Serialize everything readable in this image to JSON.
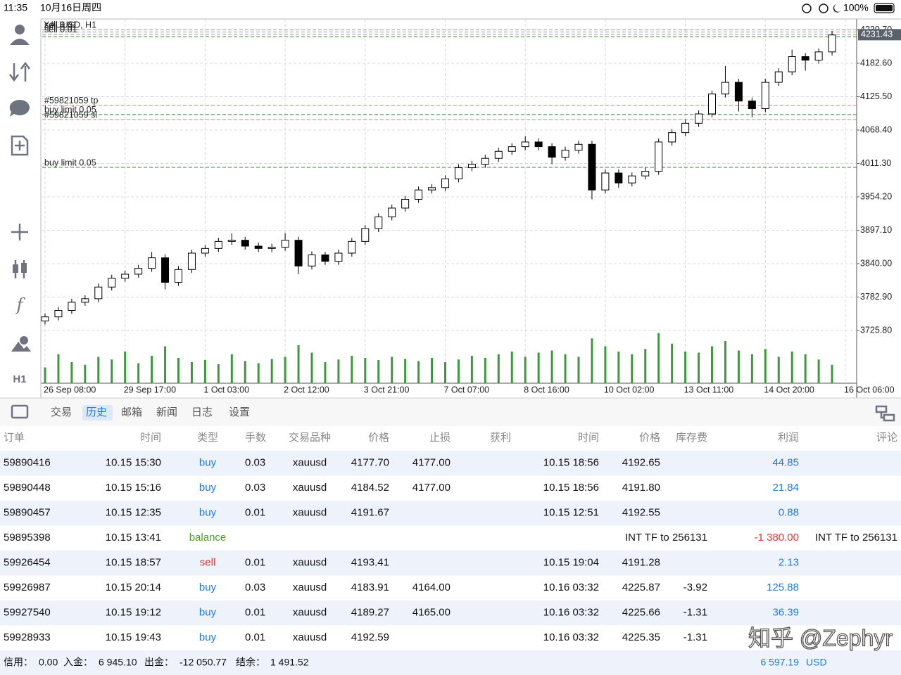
{
  "status_bar": {
    "time": "11:35",
    "date": "10月16日周四",
    "battery": "100%"
  },
  "toolbar": {
    "timeframe": "H1"
  },
  "chart_data": {
    "type": "candlestick",
    "title": "XAUUSD, H1",
    "open": [
      3742,
      3749,
      3760,
      3774,
      3780,
      3800,
      3815,
      3822,
      3832,
      3850,
      3808,
      3830,
      3858,
      3866,
      3878,
      3880,
      3870,
      3866,
      3868,
      3880,
      3836,
      3855,
      3844,
      3858,
      3878,
      3900,
      3920,
      3935,
      3950,
      3966,
      3970,
      3985,
      4004,
      4010,
      4020,
      4032,
      4040,
      4048,
      4040,
      4022,
      4034,
      4044,
      3966,
      3995,
      3978,
      3990,
      3998,
      4048,
      4064,
      4080,
      4096,
      4130,
      4150,
      4118,
      4105,
      4150,
      4168,
      4194,
      4188,
      4202
    ],
    "high": [
      3755,
      3766,
      3780,
      3786,
      3806,
      3821,
      3828,
      3838,
      3860,
      3856,
      3836,
      3864,
      3872,
      3884,
      3892,
      3886,
      3876,
      3874,
      3892,
      3886,
      3861,
      3860,
      3864,
      3884,
      3906,
      3926,
      3941,
      3956,
      3972,
      3976,
      3991,
      4010,
      4016,
      4026,
      4038,
      4046,
      4058,
      4054,
      4046,
      4040,
      4050,
      4050,
      4001,
      4001,
      3996,
      4004,
      4054,
      4070,
      4086,
      4102,
      4136,
      4178,
      4156,
      4124,
      4156,
      4174,
      4206,
      4200,
      4208,
      4238
    ],
    "low": [
      3736,
      3743,
      3754,
      3768,
      3774,
      3794,
      3809,
      3816,
      3826,
      3796,
      3802,
      3824,
      3852,
      3860,
      3872,
      3864,
      3860,
      3860,
      3862,
      3822,
      3830,
      3838,
      3838,
      3852,
      3872,
      3894,
      3914,
      3929,
      3944,
      3960,
      3964,
      3979,
      3998,
      4004,
      4014,
      4026,
      4034,
      4034,
      4010,
      4016,
      4028,
      3950,
      3960,
      3970,
      3972,
      3984,
      3992,
      4042,
      4058,
      4074,
      4090,
      4124,
      4100,
      4090,
      4099,
      4144,
      4162,
      4170,
      4182,
      4196
    ],
    "close": [
      3749,
      3760,
      3774,
      3780,
      3800,
      3815,
      3822,
      3832,
      3850,
      3808,
      3830,
      3858,
      3866,
      3878,
      3880,
      3870,
      3866,
      3868,
      3880,
      3836,
      3855,
      3844,
      3858,
      3878,
      3900,
      3920,
      3935,
      3950,
      3966,
      3970,
      3985,
      4004,
      4010,
      4020,
      4032,
      4040,
      4048,
      4040,
      4022,
      4034,
      4044,
      3966,
      3995,
      3978,
      3990,
      3998,
      4048,
      4064,
      4080,
      4096,
      4130,
      4150,
      4118,
      4105,
      4150,
      4168,
      4194,
      4188,
      4202,
      4231
    ],
    "volume": [
      30,
      55,
      40,
      35,
      50,
      45,
      60,
      38,
      52,
      70,
      48,
      40,
      44,
      36,
      55,
      42,
      38,
      46,
      50,
      72,
      58,
      40,
      45,
      52,
      48,
      44,
      50,
      46,
      42,
      48,
      40,
      45,
      52,
      48,
      55,
      60,
      50,
      58,
      62,
      55,
      50,
      85,
      70,
      60,
      55,
      65,
      95,
      75,
      60,
      58,
      70,
      80,
      62,
      55,
      65,
      50,
      60,
      55,
      45,
      35
    ],
    "volume_color": "#3c9a3c",
    "vlim": [
      0,
      100
    ],
    "up_color": "#ffffff",
    "down_color": "#000000",
    "ylim": [
      3635.6,
      4258.3
    ],
    "yticks": [
      {
        "value": 3725.8,
        "label": "3725.80"
      },
      {
        "value": 3782.9,
        "label": "3782.90"
      },
      {
        "value": 3840,
        "label": "3840.00"
      },
      {
        "value": 3897.1,
        "label": "3897.10"
      },
      {
        "value": 3954.2,
        "label": "3954.20"
      },
      {
        "value": 4011.3,
        "label": "4011.30"
      },
      {
        "value": 4068.4,
        "label": "4068.40"
      },
      {
        "value": 4125.5,
        "label": "4125.50"
      },
      {
        "value": 4182.6,
        "label": "4182.60"
      },
      {
        "value": 4239.7,
        "label": "4239.70"
      }
    ],
    "xticks": [
      {
        "value": 0,
        "label": "26 Sep 08:00"
      },
      {
        "value": 6,
        "label": "29 Sep 17:00"
      },
      {
        "value": 12,
        "label": "1 Oct 03:00"
      },
      {
        "value": 18,
        "label": "2 Oct 12:00"
      },
      {
        "value": 24,
        "label": "3 Oct 21:00"
      },
      {
        "value": 30,
        "label": "7 Oct 07:00"
      },
      {
        "value": 36,
        "label": "8 Oct 16:00"
      },
      {
        "value": 42,
        "label": "10 Oct 02:00"
      },
      {
        "value": 48,
        "label": "13 Oct 11:00"
      },
      {
        "value": 54,
        "label": "14 Oct 20:00"
      },
      {
        "value": 60,
        "label": "16 Oct 06:00"
      }
    ],
    "grid": true,
    "last_price": 4231.43,
    "levels": [
      {
        "label": "sell 0.01",
        "value": 4240,
        "color": "#9a9a9a"
      },
      {
        "label": "sell 0.01",
        "value": 4236,
        "color": "#9a9a9a"
      },
      {
        "label": "sell 0.01",
        "value": 4232,
        "color": "#9a9a9a"
      },
      {
        "value": 4228,
        "color": "#2e8b2e"
      },
      {
        "label": "#59821059 tp",
        "value": 4110.5,
        "color": "#e07a7a"
      },
      {
        "label": "buy limit 0.05",
        "value": 4094.9,
        "color": "#2e8b2e"
      },
      {
        "label": "#59821059 sl",
        "value": 4086.4,
        "color": "#e07a7a"
      },
      {
        "label": "buy limit 0.05",
        "value": 4004.7,
        "color": "#2e8b2e"
      }
    ]
  },
  "tabs": [
    "交易",
    "历史",
    "邮箱",
    "新闻",
    "日志",
    "设置"
  ],
  "active_tab": 1,
  "table": {
    "columns": [
      "订单",
      "时间",
      "类型",
      "手数",
      "交易品种",
      "价格",
      "止损",
      "获利",
      "时间",
      "价格",
      "库存费",
      "利润",
      "评论"
    ],
    "rows": [
      [
        "59890416",
        "10.15 15:30",
        "buy",
        "0.03",
        "xauusd",
        "4177.70",
        "4177.00",
        null,
        "10.15 18:56",
        "4192.65",
        null,
        "44.85",
        null
      ],
      [
        "59890448",
        "10.15 15:16",
        "buy",
        "0.03",
        "xauusd",
        "4184.52",
        "4177.00",
        null,
        "10.15 18:56",
        "4191.80",
        null,
        "21.84",
        null
      ],
      [
        "59890457",
        "10.15 12:35",
        "buy",
        "0.01",
        "xauusd",
        "4191.67",
        null,
        null,
        "10.15 12:51",
        "4192.55",
        null,
        "0.88",
        null
      ],
      [
        "59895398",
        "10.15 13:41",
        "balance",
        null,
        null,
        null,
        null,
        null,
        null,
        null,
        "INT TF to 256131",
        "-1 380.00",
        "INT TF to 256131"
      ],
      [
        "59926454",
        "10.15 18:57",
        "sell",
        "0.01",
        "xauusd",
        "4193.41",
        null,
        null,
        "10.15 19:04",
        "4191.28",
        null,
        "2.13",
        null
      ],
      [
        "59926987",
        "10.15 20:14",
        "buy",
        "0.03",
        "xauusd",
        "4183.91",
        "4164.00",
        null,
        "10.16 03:32",
        "4225.87",
        "-3.92",
        "125.88",
        null
      ],
      [
        "59927540",
        "10.15 19:12",
        "buy",
        "0.01",
        "xauusd",
        "4189.27",
        "4165.00",
        null,
        "10.16 03:32",
        "4225.66",
        "-1.31",
        "36.39",
        null
      ],
      [
        "59928933",
        "10.15 19:43",
        "buy",
        "0.01",
        "xauusd",
        "4192.59",
        null,
        null,
        "10.16 03:32",
        "4225.35",
        "-1.31",
        null,
        null
      ]
    ]
  },
  "footer": {
    "credit_label": "信用：",
    "credit": "0.00",
    "deposit_label": "入金：",
    "deposit": "6 945.10",
    "withdrawal_label": "出金：",
    "withdrawal": "-12 050.77",
    "balance_label": "结余：",
    "balance": "1 491.52",
    "profit": "6 597.19",
    "currency": "USD"
  },
  "watermark": "知乎 @Zephyr"
}
